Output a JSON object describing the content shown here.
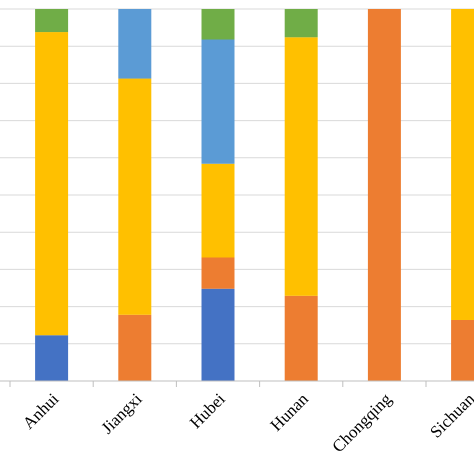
{
  "chart_data": {
    "type": "bar",
    "stacked": true,
    "normalized": true,
    "categories": [
      "Anhui",
      "Jiangxi",
      "Hubei",
      "Hunan",
      "Chongqing",
      "Sichuan"
    ],
    "series": [
      {
        "color": "#4472c4",
        "values": [
          12.3,
          0,
          24.8,
          0,
          0,
          0
        ]
      },
      {
        "color": "#ed7d31",
        "values": [
          0,
          17.8,
          8.4,
          22.9,
          100,
          16.4
        ]
      },
      {
        "color": "#ffc000",
        "values": [
          81.5,
          63.5,
          25.2,
          69.5,
          0,
          83.6
        ]
      },
      {
        "color": "#5b9bd5",
        "values": [
          0,
          18.7,
          33.4,
          0,
          0,
          0
        ]
      },
      {
        "color": "#70ad47",
        "values": [
          6.2,
          0,
          8.2,
          7.6,
          0,
          0
        ]
      }
    ],
    "ylim": [
      0,
      100
    ],
    "y_gridlines": [
      10,
      20,
      30,
      40,
      50,
      60,
      70,
      80,
      90,
      100
    ],
    "grid": true,
    "xlabel": "",
    "ylabel": "",
    "title": ""
  }
}
